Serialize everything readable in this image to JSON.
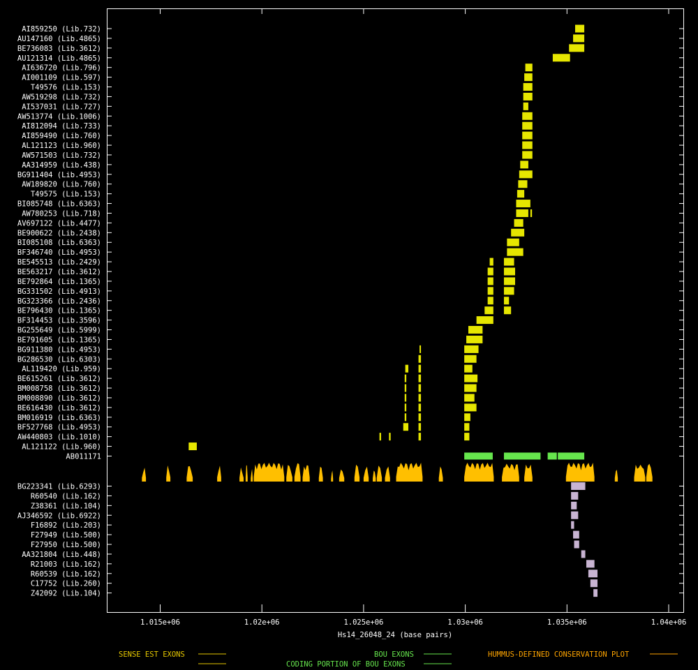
{
  "colors": {
    "background": "#000000",
    "axis": "#ffffff",
    "sense": "#e6e600",
    "antisense": "#c8b4d2",
    "bou": "#66e64d",
    "conservation": "#ffbf00",
    "legend_sense": "#e6c800",
    "legend_bou": "#66e64d",
    "legend_coding": "#66e64d",
    "legend_hummus": "#ffa500"
  },
  "chart_data": {
    "type": "gene-track",
    "xlabel": "Hs14_26048_24 (base pairs)",
    "x_ticks": [
      {
        "value": 1015000,
        "label": "1.015e+06"
      },
      {
        "value": 1020000,
        "label": "1.02e+06"
      },
      {
        "value": 1025000,
        "label": "1.025e+06"
      },
      {
        "value": 1030000,
        "label": "1.03e+06"
      },
      {
        "value": 1035000,
        "label": "1.035e+06"
      },
      {
        "value": 1040000,
        "label": "1.04e+06"
      }
    ],
    "xlim": [
      1012400,
      1040800
    ],
    "sense_ests": [
      {
        "label": "AI859250 (Lib.732)",
        "exons": [
          [
            1035400,
            1035850
          ]
        ]
      },
      {
        "label": "AU147160 (Lib.4865)",
        "exons": [
          [
            1035300,
            1035850
          ]
        ]
      },
      {
        "label": "BE736083 (Lib.3612)",
        "exons": [
          [
            1035100,
            1035850
          ]
        ]
      },
      {
        "label": "AU121314 (Lib.4865)",
        "exons": [
          [
            1034300,
            1035150
          ]
        ]
      },
      {
        "label": "AI636720 (Lib.796)",
        "exons": [
          [
            1032950,
            1033300
          ]
        ]
      },
      {
        "label": "AI001109 (Lib.597)",
        "exons": [
          [
            1032900,
            1033300
          ]
        ]
      },
      {
        "label": "T49576 (Lib.153)",
        "exons": [
          [
            1032850,
            1033300
          ]
        ]
      },
      {
        "label": "AW519298 (Lib.732)",
        "exons": [
          [
            1032850,
            1033300
          ]
        ]
      },
      {
        "label": "AI537031 (Lib.727)",
        "exons": [
          [
            1032850,
            1033100
          ]
        ]
      },
      {
        "label": "AW513774 (Lib.1006)",
        "exons": [
          [
            1032800,
            1033300
          ]
        ]
      },
      {
        "label": "AI812094 (Lib.733)",
        "exons": [
          [
            1032800,
            1033300
          ]
        ]
      },
      {
        "label": "AI859490 (Lib.760)",
        "exons": [
          [
            1032800,
            1033300
          ]
        ]
      },
      {
        "label": "AL121123 (Lib.960)",
        "exons": [
          [
            1032800,
            1033300
          ]
        ]
      },
      {
        "label": "AW571503 (Lib.732)",
        "exons": [
          [
            1032800,
            1033300
          ]
        ]
      },
      {
        "label": "AA314959 (Lib.438)",
        "exons": [
          [
            1032700,
            1033100
          ]
        ]
      },
      {
        "label": "BG911404 (Lib.4953)",
        "exons": [
          [
            1032650,
            1033300
          ]
        ]
      },
      {
        "label": "AW189820 (Lib.760)",
        "exons": [
          [
            1032600,
            1033050
          ]
        ]
      },
      {
        "label": "T49575 (Lib.153)",
        "exons": [
          [
            1032550,
            1032900
          ]
        ]
      },
      {
        "label": "BI085748 (Lib.6363)",
        "exons": [
          [
            1032500,
            1033200
          ]
        ]
      },
      {
        "label": "AW780253 (Lib.718)",
        "exons": [
          [
            1032500,
            1033100
          ],
          [
            1033200,
            1033280
          ]
        ]
      },
      {
        "label": "AV697122 (Lib.4477)",
        "exons": [
          [
            1032400,
            1032850
          ]
        ]
      },
      {
        "label": "BE900622 (Lib.2438)",
        "exons": [
          [
            1032250,
            1032900
          ]
        ]
      },
      {
        "label": "BI085108 (Lib.6363)",
        "exons": [
          [
            1032050,
            1032650
          ]
        ]
      },
      {
        "label": "BF346740 (Lib.4953)",
        "exons": [
          [
            1032050,
            1032850
          ]
        ]
      },
      {
        "label": "BE545513 (Lib.2429)",
        "exons": [
          [
            1031200,
            1031380
          ],
          [
            1031900,
            1032400
          ]
        ]
      },
      {
        "label": "BE563217 (Lib.3612)",
        "exons": [
          [
            1031100,
            1031380
          ],
          [
            1031900,
            1032450
          ]
        ]
      },
      {
        "label": "BE792864 (Lib.1365)",
        "exons": [
          [
            1031100,
            1031380
          ],
          [
            1031900,
            1032450
          ]
        ]
      },
      {
        "label": "BG331502 (Lib.4913)",
        "exons": [
          [
            1031100,
            1031380
          ],
          [
            1031900,
            1032400
          ]
        ]
      },
      {
        "label": "BG323366 (Lib.2436)",
        "exons": [
          [
            1031100,
            1031380
          ],
          [
            1031900,
            1032150
          ]
        ]
      },
      {
        "label": "BE796430 (Lib.1365)",
        "exons": [
          [
            1030950,
            1031380
          ],
          [
            1031900,
            1032250
          ]
        ]
      },
      {
        "label": "BF314453 (Lib.3596)",
        "exons": [
          [
            1030550,
            1031380
          ]
        ]
      },
      {
        "label": "BG255649 (Lib.5999)",
        "exons": [
          [
            1030150,
            1030850
          ]
        ]
      },
      {
        "label": "BE791605 (Lib.1365)",
        "exons": [
          [
            1030050,
            1030850
          ]
        ]
      },
      {
        "label": "BG911380 (Lib.4953)",
        "exons": [
          [
            1027750,
            1027820
          ],
          [
            1029950,
            1030650
          ]
        ]
      },
      {
        "label": "BG286530 (Lib.6303)",
        "exons": [
          [
            1027700,
            1027820
          ],
          [
            1029950,
            1030550
          ]
        ]
      },
      {
        "label": "AL119420 (Lib.959)",
        "exons": [
          [
            1027050,
            1027200
          ],
          [
            1027700,
            1027820
          ],
          [
            1029950,
            1030350
          ]
        ]
      },
      {
        "label": "BE615261 (Lib.3612)",
        "exons": [
          [
            1027020,
            1027100
          ],
          [
            1027700,
            1027820
          ],
          [
            1029950,
            1030600
          ]
        ]
      },
      {
        "label": "BM008758 (Lib.3612)",
        "exons": [
          [
            1027020,
            1027100
          ],
          [
            1027700,
            1027820
          ],
          [
            1029950,
            1030550
          ]
        ]
      },
      {
        "label": "BM008890 (Lib.3612)",
        "exons": [
          [
            1027020,
            1027100
          ],
          [
            1027700,
            1027820
          ],
          [
            1029950,
            1030450
          ]
        ]
      },
      {
        "label": "BE616430 (Lib.3612)",
        "exons": [
          [
            1027020,
            1027100
          ],
          [
            1027700,
            1027820
          ],
          [
            1029950,
            1030550
          ]
        ]
      },
      {
        "label": "BM016919 (Lib.6363)",
        "exons": [
          [
            1027020,
            1027100
          ],
          [
            1027700,
            1027820
          ],
          [
            1029950,
            1030250
          ]
        ]
      },
      {
        "label": "BF527768 (Lib.4953)",
        "exons": [
          [
            1026950,
            1027200
          ],
          [
            1027700,
            1027820
          ],
          [
            1029950,
            1030200
          ]
        ]
      },
      {
        "label": "AW440803 (Lib.1010)",
        "exons": [
          [
            1025780,
            1025860
          ],
          [
            1026250,
            1026330
          ],
          [
            1027700,
            1027820
          ],
          [
            1029950,
            1030200
          ]
        ]
      },
      {
        "label": "AL121122 (Lib.960)",
        "exons": [
          [
            1016400,
            1016800
          ]
        ]
      }
    ],
    "bou": {
      "label": "AB011171",
      "exons": [
        [
          1029950,
          1031350
        ],
        [
          1031900,
          1033700
        ],
        [
          1034050,
          1034500
        ],
        [
          1034550,
          1035850
        ]
      ]
    },
    "conservation": [
      [
        1014100,
        1014300,
        0.8
      ],
      [
        1015300,
        1015500,
        0.9
      ],
      [
        1016300,
        1016600,
        0.85
      ],
      [
        1017800,
        1018000,
        0.9
      ],
      [
        1018900,
        1019100,
        0.8
      ],
      [
        1019200,
        1019300,
        0.9
      ],
      [
        1019450,
        1019550,
        0.7
      ],
      [
        1019600,
        1021100,
        1.0
      ],
      [
        1021200,
        1021500,
        0.9
      ],
      [
        1021600,
        1021900,
        1.0
      ],
      [
        1022000,
        1022350,
        0.9
      ],
      [
        1022800,
        1023000,
        0.8
      ],
      [
        1023400,
        1023500,
        0.6
      ],
      [
        1023800,
        1024050,
        0.75
      ],
      [
        1024550,
        1024800,
        0.9
      ],
      [
        1025000,
        1025250,
        0.8
      ],
      [
        1025450,
        1025600,
        0.7
      ],
      [
        1025650,
        1025900,
        0.85
      ],
      [
        1026050,
        1026300,
        0.8
      ],
      [
        1026600,
        1027900,
        1.0
      ],
      [
        1028700,
        1028900,
        0.8
      ],
      [
        1029950,
        1031400,
        1.0
      ],
      [
        1031800,
        1032650,
        0.95
      ],
      [
        1032900,
        1033300,
        0.9
      ],
      [
        1034950,
        1036350,
        1.0
      ],
      [
        1037350,
        1037500,
        0.75
      ],
      [
        1038300,
        1038850,
        0.9
      ],
      [
        1038900,
        1039200,
        0.95
      ]
    ],
    "antisense_ests": [
      {
        "label": "BG223341 (Lib.6293)",
        "exons": [
          [
            1035200,
            1035900
          ]
        ]
      },
      {
        "label": "R60540 (Lib.162)",
        "exons": [
          [
            1035200,
            1035550
          ]
        ]
      },
      {
        "label": "Z38361 (Lib.104)",
        "exons": [
          [
            1035200,
            1035480
          ]
        ]
      },
      {
        "label": "AJ346592 (Lib.6922)",
        "exons": [
          [
            1035200,
            1035550
          ]
        ]
      },
      {
        "label": "F16892 (Lib.203)",
        "exons": [
          [
            1035200,
            1035350
          ]
        ]
      },
      {
        "label": "F27949 (Lib.500)",
        "exons": [
          [
            1035300,
            1035600
          ]
        ]
      },
      {
        "label": "F27950 (Lib.500)",
        "exons": [
          [
            1035350,
            1035600
          ]
        ]
      },
      {
        "label": "AA321804 (Lib.448)",
        "exons": [
          [
            1035700,
            1035900
          ]
        ]
      },
      {
        "label": "R21003 (Lib.162)",
        "exons": [
          [
            1035950,
            1036350
          ]
        ]
      },
      {
        "label": "R60539 (Lib.162)",
        "exons": [
          [
            1036050,
            1036500
          ]
        ]
      },
      {
        "label": "C17752 (Lib.260)",
        "exons": [
          [
            1036150,
            1036500
          ]
        ]
      },
      {
        "label": "Z42092 (Lib.104)",
        "exons": [
          [
            1036300,
            1036500
          ]
        ]
      }
    ]
  },
  "legend": {
    "sense": "SENSE EST EXONS",
    "bou": "BOU EXONS",
    "coding": "CODING PORTION OF BOU EXONS",
    "hummus": "HUMMUS-DEFINED CONSERVATION PLOT"
  }
}
